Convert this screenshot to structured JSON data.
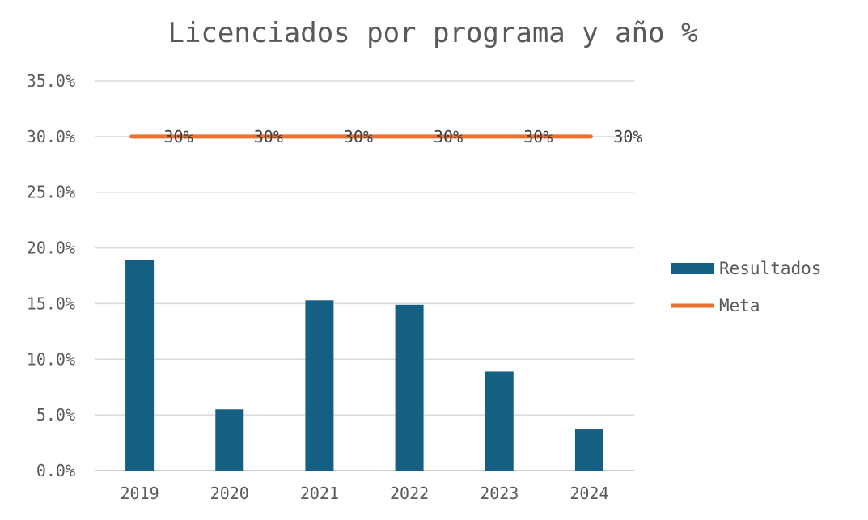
{
  "chart_data": {
    "type": "bar",
    "title": "Licenciados por programa y año %",
    "xlabel": "",
    "ylabel": "",
    "categories": [
      "2019",
      "2020",
      "2021",
      "2022",
      "2023",
      "2024"
    ],
    "ylim": [
      0,
      35
    ],
    "yticks": [
      0,
      5,
      10,
      15,
      20,
      25,
      30,
      35
    ],
    "ytick_labels": [
      "0.0%",
      "5.0%",
      "10.0%",
      "15.0%",
      "20.0%",
      "25.0%",
      "30.0%",
      "35.0%"
    ],
    "grid": true,
    "legend_position": "right",
    "series": [
      {
        "name": "Resultados",
        "kind": "bar",
        "color": "#156082",
        "values": [
          18.9,
          5.5,
          15.3,
          14.9,
          8.9,
          3.7
        ]
      },
      {
        "name": "Meta",
        "kind": "line",
        "color": "#e97132",
        "values": [
          30,
          30,
          30,
          30,
          30,
          30
        ],
        "data_labels": [
          "30%",
          "30%",
          "30%",
          "30%",
          "30%",
          "30%"
        ]
      }
    ]
  }
}
